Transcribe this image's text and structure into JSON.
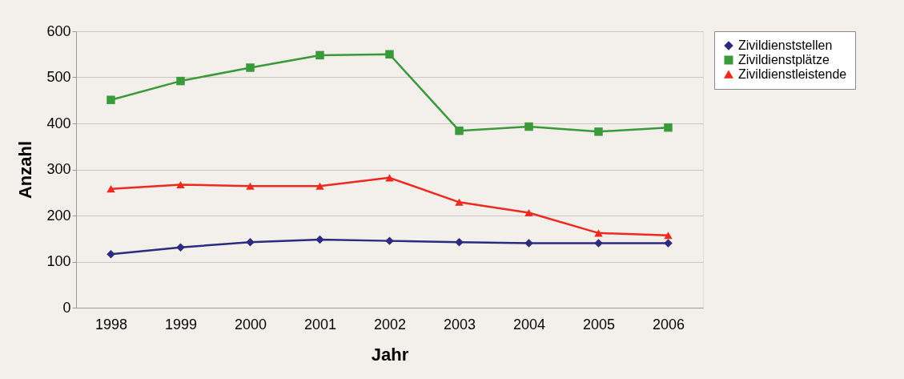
{
  "chart_data": {
    "type": "line",
    "xlabel": "Jahr",
    "ylabel": "Anzahl",
    "categories": [
      "1998",
      "1999",
      "2000",
      "2001",
      "2002",
      "2003",
      "2004",
      "2005",
      "2006"
    ],
    "series": [
      {
        "name": "Zivildienststellen",
        "color": "#2b2b80",
        "marker": "diamond",
        "values": [
          116,
          131,
          142,
          148,
          145,
          142,
          140,
          140,
          140
        ]
      },
      {
        "name": "Zivildienstplätze",
        "color": "#3a9a3a",
        "marker": "square",
        "values": [
          451,
          492,
          521,
          548,
          550,
          384,
          393,
          382,
          391
        ]
      },
      {
        "name": "Zivildienstleistende",
        "color": "#ee2a1e",
        "marker": "triangle",
        "values": [
          258,
          267,
          264,
          264,
          282,
          229,
          206,
          162,
          157
        ]
      }
    ],
    "ylim": [
      0,
      600
    ],
    "yticks": [
      0,
      100,
      200,
      300,
      400,
      500,
      600
    ],
    "grid": "y",
    "legend": "right",
    "line_style": "solid"
  }
}
